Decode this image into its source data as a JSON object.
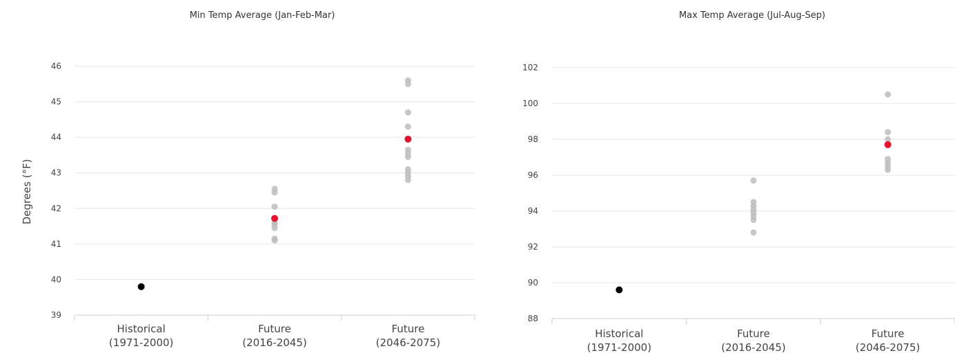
{
  "chart_data": [
    {
      "type": "scatter",
      "title": "Min Temp Average (Jan-Feb-Mar)",
      "ylabel": "Degrees (°F)",
      "xlabel": "",
      "ylim": [
        39,
        46
      ],
      "yticks": [
        39,
        40,
        41,
        42,
        43,
        44,
        45,
        46
      ],
      "grid": true,
      "categories": [
        {
          "line1": "Historical",
          "line2": "(1971-2000)"
        },
        {
          "line1": "Future",
          "line2": "(2016-2045)"
        },
        {
          "line1": "Future",
          "line2": "(2046-2075)"
        }
      ],
      "series": [
        {
          "name": "",
          "color": "#bdbdbd",
          "role": "models",
          "points": [
            {
              "cat": 1,
              "values": [
                41.1,
                41.15,
                41.45,
                41.55,
                41.6,
                41.7,
                42.05,
                42.45,
                42.55
              ]
            },
            {
              "cat": 2,
              "values": [
                42.8,
                42.9,
                43.0,
                43.1,
                43.45,
                43.55,
                43.65,
                44.3,
                44.7,
                45.5,
                45.6
              ]
            }
          ]
        },
        {
          "name": "",
          "color": "#e8112d",
          "role": "mean",
          "points": [
            {
              "cat": 1,
              "values": [
                41.72
              ]
            },
            {
              "cat": 2,
              "values": [
                43.95
              ]
            }
          ]
        },
        {
          "name": "",
          "color": "#000000",
          "role": "observed",
          "points": [
            {
              "cat": 0,
              "values": [
                39.8
              ]
            }
          ]
        }
      ]
    },
    {
      "type": "scatter",
      "title": "Max Temp Average (Jul-Aug-Sep)",
      "ylabel": "",
      "xlabel": "",
      "ylim": [
        88,
        102
      ],
      "yticks": [
        88,
        90,
        92,
        94,
        96,
        98,
        100,
        102
      ],
      "grid": true,
      "categories": [
        {
          "line1": "Historical",
          "line2": "(1971-2000)"
        },
        {
          "line1": "Future",
          "line2": "(2016-2045)"
        },
        {
          "line1": "Future",
          "line2": "(2046-2075)"
        }
      ],
      "series": [
        {
          "name": "",
          "color": "#bdbdbd",
          "role": "models",
          "points": [
            {
              "cat": 1,
              "values": [
                92.8,
                93.5,
                93.7,
                93.9,
                94.1,
                94.3,
                94.5,
                95.7
              ]
            },
            {
              "cat": 2,
              "values": [
                96.3,
                96.5,
                96.7,
                96.9,
                98.0,
                98.4,
                100.5
              ]
            }
          ]
        },
        {
          "name": "",
          "color": "#e8112d",
          "role": "mean",
          "points": [
            {
              "cat": 2,
              "values": [
                97.7
              ]
            }
          ]
        },
        {
          "name": "",
          "color": "#000000",
          "role": "observed",
          "points": [
            {
              "cat": 0,
              "values": [
                89.6
              ]
            }
          ]
        }
      ]
    }
  ]
}
